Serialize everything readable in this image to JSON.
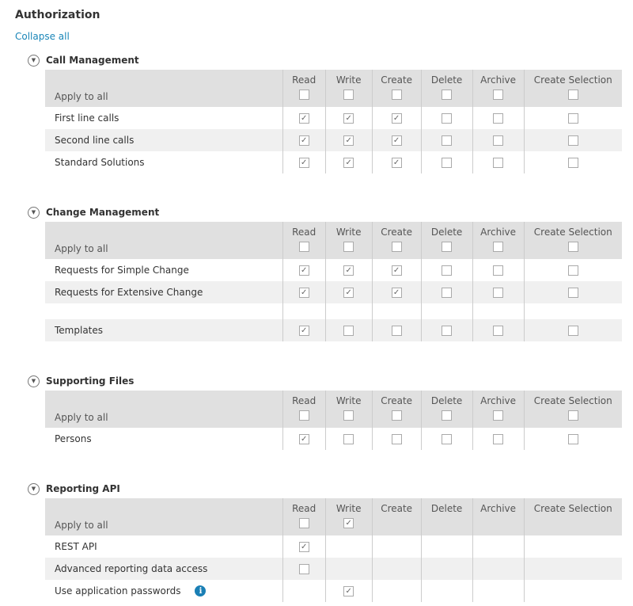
{
  "title": "Authorization",
  "collapse_all": "Collapse all",
  "apply_to_all": "Apply to all",
  "columns": [
    "Read",
    "Write",
    "Create",
    "Delete",
    "Archive",
    "Create Selection"
  ],
  "sections": [
    {
      "title": "Call Management",
      "apply": [
        0,
        0,
        0,
        0,
        0,
        0
      ],
      "rows": [
        {
          "label": "First line calls",
          "values": [
            1,
            1,
            1,
            0,
            0,
            0
          ]
        },
        {
          "label": "Second line calls",
          "values": [
            1,
            1,
            1,
            0,
            0,
            0
          ]
        },
        {
          "label": "Standard Solutions",
          "values": [
            1,
            1,
            1,
            0,
            0,
            0
          ]
        }
      ]
    },
    {
      "title": "Change Management",
      "apply": [
        0,
        0,
        0,
        0,
        0,
        0
      ],
      "rows": [
        {
          "label": "Requests for Simple Change",
          "values": [
            1,
            1,
            1,
            0,
            0,
            0
          ]
        },
        {
          "label": "Requests for Extensive Change",
          "values": [
            1,
            1,
            1,
            0,
            0,
            0
          ]
        },
        {
          "label": "Templates",
          "values": [
            1,
            0,
            0,
            0,
            0,
            0
          ],
          "gap_before": true
        }
      ]
    },
    {
      "title": "Supporting Files",
      "apply": [
        0,
        0,
        0,
        0,
        0,
        0
      ],
      "rows": [
        {
          "label": "Persons",
          "values": [
            1,
            0,
            0,
            0,
            0,
            0
          ]
        }
      ]
    },
    {
      "title": "Reporting API",
      "apply": [
        0,
        1,
        null,
        null,
        null,
        null
      ],
      "rows": [
        {
          "label": "REST API",
          "values": [
            1,
            null,
            null,
            null,
            null,
            null
          ]
        },
        {
          "label": "Advanced reporting data access",
          "values": [
            0,
            null,
            null,
            null,
            null,
            null
          ]
        },
        {
          "label": "Use application passwords",
          "values": [
            null,
            1,
            null,
            null,
            null,
            null
          ],
          "info_icon": true
        }
      ]
    }
  ],
  "colors": {
    "link": "#1a86b8",
    "header_bg": "#e0e0e0",
    "shade_bg": "#f0f0f0",
    "info": "#1a7fb5"
  }
}
